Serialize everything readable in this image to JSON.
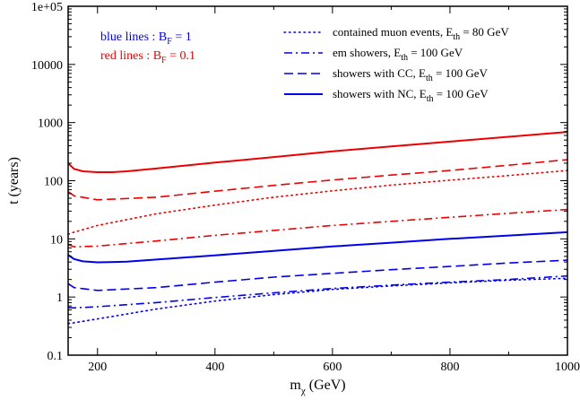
{
  "chart_data": {
    "type": "line",
    "xlabel": "m",
    "xlabel_sub": "χ",
    "xlabel_unit": " (GeV)",
    "ylabel": "t (years)",
    "xlim": [
      150,
      1000
    ],
    "ylim": [
      0.1,
      100000
    ],
    "y_scale": "log",
    "grid": false,
    "x_ticks": [
      200,
      400,
      600,
      800,
      1000
    ],
    "x_tick_labels": [
      "200",
      "400",
      "600",
      "800",
      "1000"
    ],
    "y_ticks": [
      0.1,
      1,
      10,
      100,
      1000,
      10000,
      100000
    ],
    "y_tick_labels": [
      "0.1",
      "1",
      "10",
      "100",
      "1000",
      "10000",
      "1e+05"
    ],
    "colors": {
      "blue": "#0000ee",
      "red": "#ee0000"
    },
    "notes": [
      {
        "main": "blue lines : B",
        "sub": "F",
        "tail": " = 1",
        "color": "#0000ee"
      },
      {
        "main": "red lines   : B",
        "sub": "F",
        "tail": " = 0.1",
        "color": "#ee0000"
      }
    ],
    "legend": [
      {
        "main": "contained muon events, E",
        "sub": "th",
        "tail": " = 80 GeV",
        "style": "dotted"
      },
      {
        "main": "em showers, E",
        "sub": "th",
        "tail": " = 100 GeV",
        "style": "dashdot"
      },
      {
        "main": "showers with CC, E",
        "sub": "th",
        "tail": " = 100 GeV",
        "style": "dashed"
      },
      {
        "main": "showers with NC,  E",
        "sub": "th",
        "tail": " = 100 GeV",
        "style": "solid"
      }
    ],
    "series": [
      {
        "color": "#0000ee",
        "style": "dotted",
        "x": [
          150,
          160,
          200,
          300,
          400,
          500,
          600,
          700,
          800,
          900,
          1000
        ],
        "values": [
          0.35,
          0.36,
          0.42,
          0.62,
          0.85,
          1.1,
          1.35,
          1.55,
          1.75,
          1.95,
          2.1
        ]
      },
      {
        "color": "#0000ee",
        "style": "dashdot",
        "x": [
          150,
          160,
          200,
          300,
          400,
          500,
          600,
          700,
          800,
          900,
          1000
        ],
        "values": [
          0.66,
          0.65,
          0.68,
          0.8,
          0.98,
          1.18,
          1.4,
          1.6,
          1.8,
          2.0,
          2.3
        ]
      },
      {
        "color": "#0000ee",
        "style": "dashed",
        "x": [
          150,
          160,
          200,
          300,
          400,
          500,
          600,
          700,
          800,
          900,
          1000
        ],
        "values": [
          1.7,
          1.45,
          1.3,
          1.45,
          1.8,
          2.2,
          2.55,
          2.95,
          3.35,
          3.85,
          4.3
        ]
      },
      {
        "color": "#0000ee",
        "style": "solid",
        "x": [
          150,
          160,
          175,
          200,
          250,
          300,
          400,
          500,
          600,
          700,
          800,
          900,
          1000
        ],
        "values": [
          5.3,
          4.5,
          4.1,
          3.95,
          4.05,
          4.4,
          5.2,
          6.2,
          7.4,
          8.6,
          10.0,
          11.4,
          13.0
        ]
      },
      {
        "color": "#ee0000",
        "style": "dotted",
        "x": [
          150,
          160,
          200,
          300,
          400,
          500,
          600,
          700,
          800,
          900,
          1000
        ],
        "values": [
          12.0,
          13.0,
          17.0,
          27.0,
          38.0,
          52.0,
          67.0,
          84.0,
          102.0,
          123.0,
          150.0
        ]
      },
      {
        "color": "#ee0000",
        "style": "dashdot",
        "x": [
          150,
          160,
          200,
          300,
          400,
          500,
          600,
          700,
          800,
          900,
          1000
        ],
        "values": [
          8.0,
          7.3,
          7.5,
          9.2,
          11.5,
          14.0,
          17.0,
          20.0,
          23.5,
          27.5,
          32.0
        ]
      },
      {
        "color": "#ee0000",
        "style": "dashed",
        "x": [
          150,
          160,
          200,
          300,
          400,
          500,
          600,
          700,
          800,
          900,
          1000
        ],
        "values": [
          65.0,
          55.0,
          47.0,
          52.0,
          66.0,
          83.0,
          103.0,
          125.0,
          150.0,
          185.0,
          230.0
        ]
      },
      {
        "color": "#ee0000",
        "style": "solid",
        "x": [
          150,
          160,
          175,
          200,
          225,
          250,
          300,
          400,
          500,
          600,
          700,
          800,
          900,
          1000
        ],
        "values": [
          200.0,
          160.0,
          145.0,
          140.0,
          140.0,
          145.0,
          162.0,
          205.0,
          255.0,
          320.0,
          390.0,
          470.0,
          570.0,
          690.0
        ]
      }
    ]
  }
}
